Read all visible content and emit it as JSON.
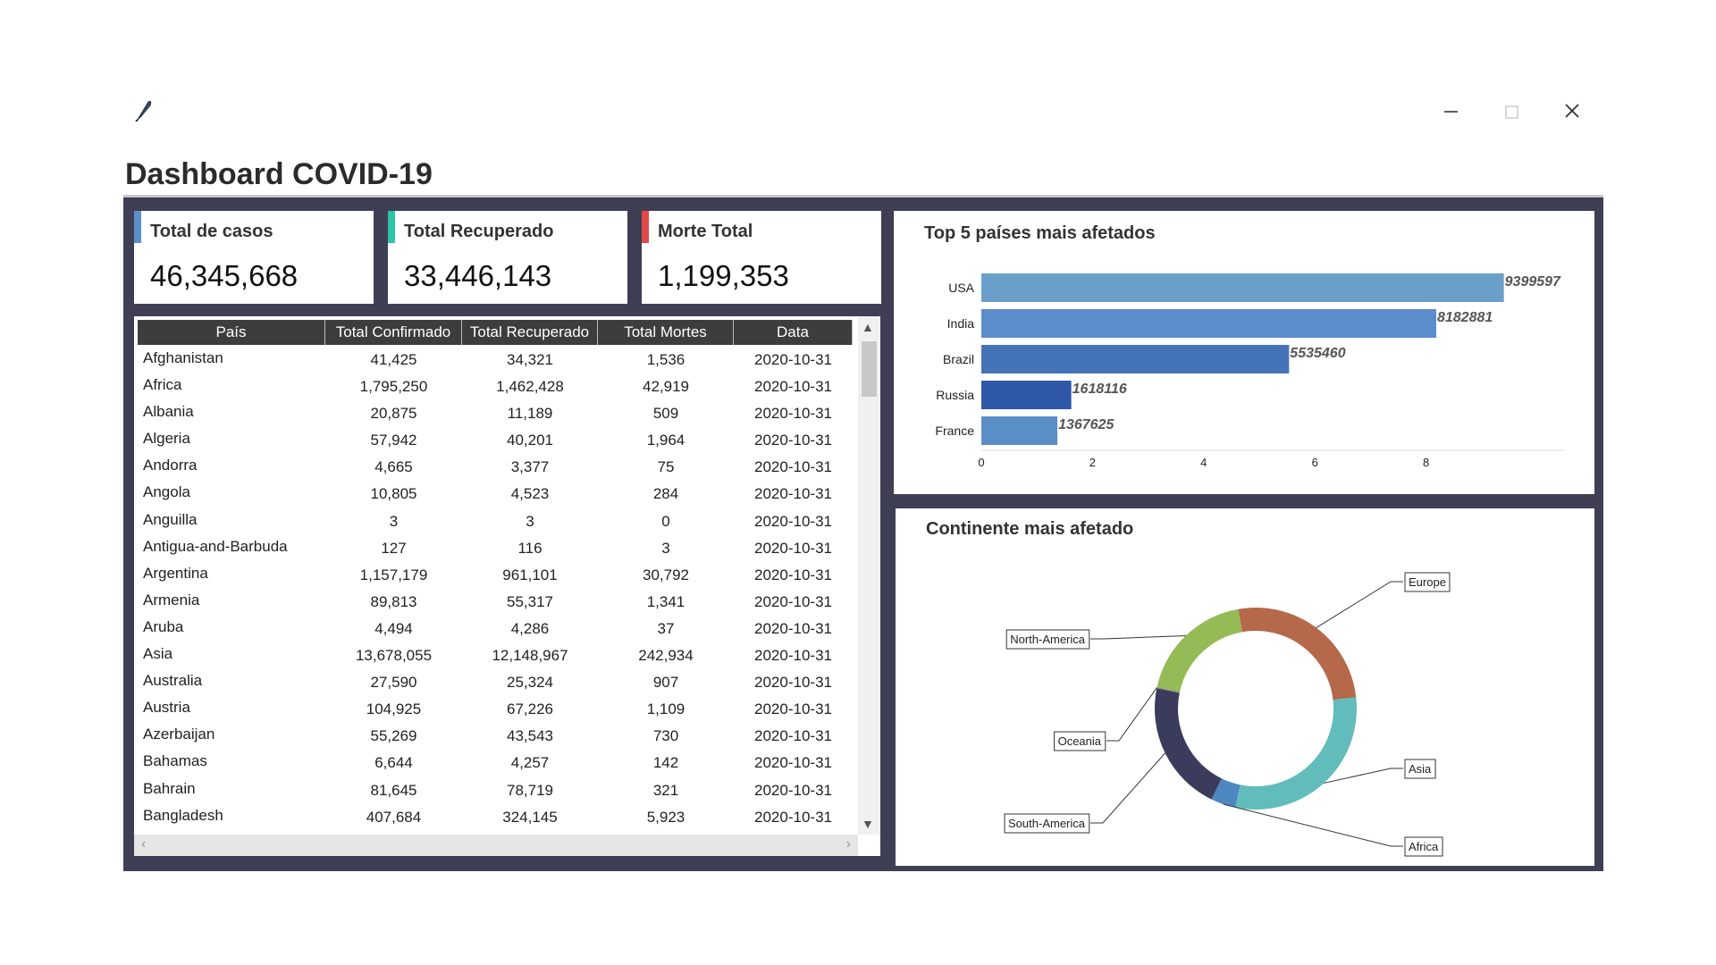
{
  "title": "Dashboard COVID-19",
  "kpis": [
    {
      "label": "Total de casos",
      "value": "46,345,668",
      "color": "#5b8fc7"
    },
    {
      "label": "Total Recuperado",
      "value": "33,446,143",
      "color": "#2ec4a6"
    },
    {
      "label": "Morte Total",
      "value": "1,199,353",
      "color": "#e04848"
    }
  ],
  "table": {
    "headers": [
      "País",
      "Total Confirmado",
      "Total Recuperado",
      "Total Mortes",
      "Data"
    ],
    "rows": [
      [
        "Afghanistan",
        "41,425",
        "34,321",
        "1,536",
        "2020-10-31"
      ],
      [
        "Africa",
        "1,795,250",
        "1,462,428",
        "42,919",
        "2020-10-31"
      ],
      [
        "Albania",
        "20,875",
        "11,189",
        "509",
        "2020-10-31"
      ],
      [
        "Algeria",
        "57,942",
        "40,201",
        "1,964",
        "2020-10-31"
      ],
      [
        "Andorra",
        "4,665",
        "3,377",
        "75",
        "2020-10-31"
      ],
      [
        "Angola",
        "10,805",
        "4,523",
        "284",
        "2020-10-31"
      ],
      [
        "Anguilla",
        "3",
        "3",
        "0",
        "2020-10-31"
      ],
      [
        "Antigua-and-Barbuda",
        "127",
        "116",
        "3",
        "2020-10-31"
      ],
      [
        "Argentina",
        "1,157,179",
        "961,101",
        "30,792",
        "2020-10-31"
      ],
      [
        "Armenia",
        "89,813",
        "55,317",
        "1,341",
        "2020-10-31"
      ],
      [
        "Aruba",
        "4,494",
        "4,286",
        "37",
        "2020-10-31"
      ],
      [
        "Asia",
        "13,678,055",
        "12,148,967",
        "242,934",
        "2020-10-31"
      ],
      [
        "Australia",
        "27,590",
        "25,324",
        "907",
        "2020-10-31"
      ],
      [
        "Austria",
        "104,925",
        "67,226",
        "1,109",
        "2020-10-31"
      ],
      [
        "Azerbaijan",
        "55,269",
        "43,543",
        "730",
        "2020-10-31"
      ],
      [
        "Bahamas",
        "6,644",
        "4,257",
        "142",
        "2020-10-31"
      ],
      [
        "Bahrain",
        "81,645",
        "78,719",
        "321",
        "2020-10-31"
      ],
      [
        "Bangladesh",
        "407,684",
        "324,145",
        "5,923",
        "2020-10-31"
      ]
    ]
  },
  "chart_data": [
    {
      "type": "bar",
      "orientation": "horizontal",
      "title": "Top 5 países mais afetados",
      "categories": [
        "USA",
        "India",
        "Brazil",
        "Russia",
        "France"
      ],
      "values": [
        9399597,
        8182881,
        5535460,
        1618116,
        1367625
      ],
      "data_labels": [
        "9399597",
        "8182881",
        "5535460",
        "1618116",
        "1367625"
      ],
      "colors": [
        "#6a9fc9",
        "#5b8ccb",
        "#4573b8",
        "#2f57a8",
        "#5a8ec6"
      ],
      "x_ticks": [
        "0",
        "2",
        "4",
        "6",
        "8"
      ],
      "xlim": [
        0,
        10000000
      ],
      "grid": false
    },
    {
      "type": "pie",
      "style": "donut",
      "title": "Continente mais afetado",
      "labels": [
        "Europe",
        "Asia",
        "Africa",
        "South-America",
        "Oceania",
        "North-America"
      ],
      "values": [
        26.0,
        30.0,
        4.0,
        21.0,
        0.2,
        18.8
      ],
      "colors": [
        "#b5694a",
        "#62bcbc",
        "#4e86c0",
        "#3b3b5e",
        "#8a8a8a",
        "#94bb55"
      ]
    }
  ]
}
